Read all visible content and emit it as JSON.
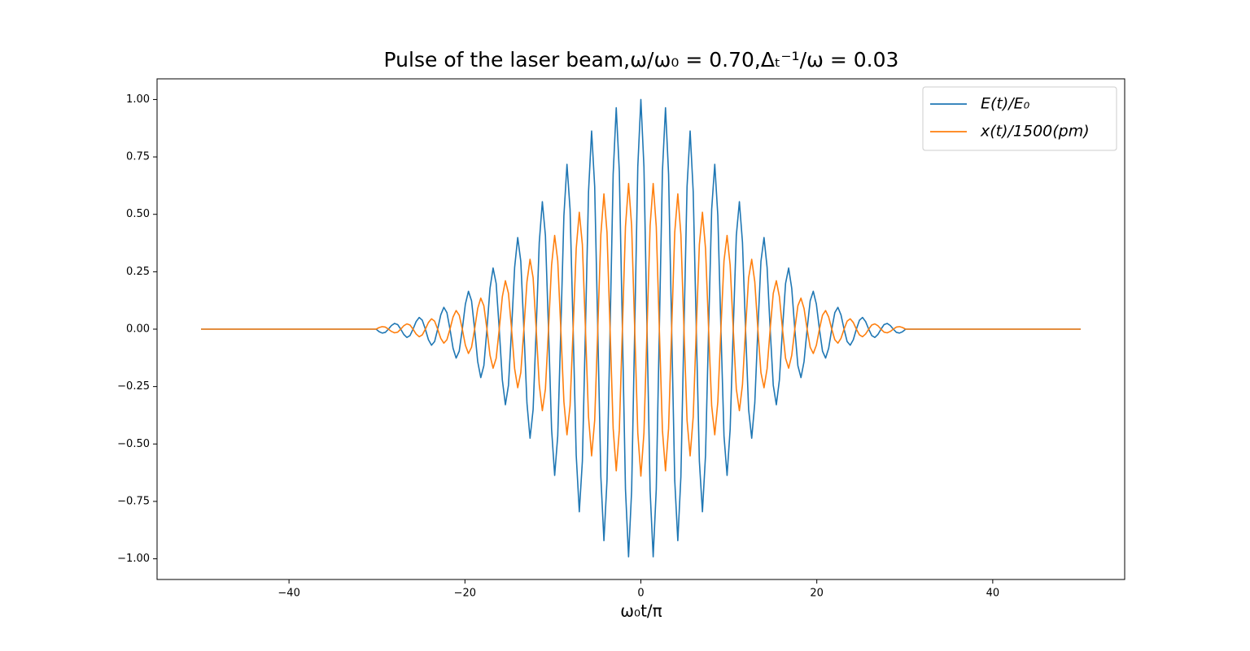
{
  "chart_data": {
    "type": "line",
    "title": "Pulse of the laser beam,ω/ω₀ = 0.70,Δₜ⁻¹/ω = 0.03",
    "x_label": "ω₀t/π",
    "x": [
      -50,
      -30.1,
      -29.75,
      -29.4,
      -29.05,
      -28.7,
      -28.35,
      -28,
      -27.65,
      -27.3,
      -26.95,
      -26.6,
      -26.25,
      -25.9,
      -25.55,
      -25.2,
      -24.85,
      -24.5,
      -24.15,
      -23.8,
      -23.45,
      -23.1,
      -22.75,
      -22.4,
      -22.05,
      -21.7,
      -21.35,
      -21,
      -20.65,
      -20.3,
      -19.95,
      -19.6,
      -19.25,
      -18.9,
      -18.55,
      -18.2,
      -17.85,
      -17.5,
      -17.15,
      -16.8,
      -16.45,
      -16.1,
      -15.75,
      -15.4,
      -15.05,
      -14.7,
      -14.35,
      -14,
      -13.65,
      -13.3,
      -12.95,
      -12.6,
      -12.25,
      -11.9,
      -11.55,
      -11.2,
      -10.85,
      -10.5,
      -10.15,
      -9.8,
      -9.45,
      -9.1,
      -8.75,
      -8.4,
      -8.05,
      -7.7,
      -7.35,
      -7,
      -6.65,
      -6.3,
      -5.95,
      -5.6,
      -5.25,
      -4.9,
      -4.55,
      -4.2,
      -3.85,
      -3.5,
      -3.15,
      -2.8,
      -2.45,
      -2.1,
      -1.75,
      -1.4,
      -1.05,
      -0.7,
      -0.35,
      0,
      0.35,
      0.7,
      1.05,
      1.4,
      1.75,
      2.1,
      2.45,
      2.8,
      3.15,
      3.5,
      3.85,
      4.2,
      4.55,
      4.9,
      5.25,
      5.6,
      5.95,
      6.3,
      6.65,
      7,
      7.35,
      7.7,
      8.05,
      8.4,
      8.75,
      9.1,
      9.45,
      9.8,
      10.15,
      10.5,
      10.85,
      11.2,
      11.55,
      11.9,
      12.25,
      12.6,
      12.95,
      13.3,
      13.65,
      14,
      14.35,
      14.7,
      15.05,
      15.4,
      15.75,
      16.1,
      16.45,
      16.8,
      17.15,
      17.5,
      17.85,
      18.2,
      18.55,
      18.9,
      19.25,
      19.6,
      19.95,
      20.3,
      20.65,
      21,
      21.35,
      21.7,
      22.05,
      22.4,
      22.75,
      23.1,
      23.45,
      23.8,
      24.15,
      24.5,
      24.85,
      25.2,
      25.55,
      25.9,
      26.25,
      26.6,
      26.95,
      27.3,
      27.65,
      28,
      28.35,
      28.7,
      29.05,
      29.4,
      29.75,
      30.1,
      50
    ],
    "series": [
      {
        "name": "E(t)/E₀",
        "color": "#1f77b4",
        "values": [
          0,
          0,
          -0.011,
          -0.017,
          -0.014,
          0,
          0.016,
          0.025,
          0.02,
          0,
          -0.023,
          -0.036,
          -0.028,
          0,
          0.033,
          0.051,
          0.039,
          0,
          -0.046,
          -0.07,
          -0.054,
          0,
          0.062,
          0.095,
          0.072,
          0,
          -0.083,
          -0.126,
          -0.096,
          0,
          0.109,
          0.165,
          0.124,
          0,
          -0.141,
          -0.211,
          -0.159,
          0,
          0.178,
          0.266,
          0.199,
          0,
          -0.221,
          -0.329,
          -0.244,
          0,
          0.269,
          0.399,
          0.295,
          0,
          -0.322,
          -0.475,
          -0.35,
          0,
          0.378,
          0.555,
          0.407,
          0,
          -0.436,
          -0.637,
          -0.465,
          0,
          0.494,
          0.718,
          0.522,
          0,
          -0.549,
          -0.795,
          -0.575,
          0,
          0.599,
          0.863,
          0.621,
          0,
          -0.642,
          -0.921,
          -0.659,
          0,
          0.675,
          0.964,
          0.687,
          0,
          -0.697,
          -0.991,
          -0.703,
          0,
          0.707,
          1,
          0.707,
          0,
          -0.703,
          -0.991,
          -0.697,
          0,
          0.687,
          0.964,
          0.675,
          0,
          -0.659,
          -0.921,
          -0.642,
          0,
          0.621,
          0.863,
          0.599,
          0,
          -0.575,
          -0.795,
          -0.549,
          0,
          0.522,
          0.718,
          0.494,
          0,
          -0.465,
          -0.637,
          -0.436,
          0,
          0.407,
          0.555,
          0.378,
          0,
          -0.35,
          -0.475,
          -0.322,
          0,
          0.295,
          0.399,
          0.269,
          0,
          -0.244,
          -0.329,
          -0.221,
          0,
          0.199,
          0.266,
          0.178,
          0,
          -0.159,
          -0.211,
          -0.141,
          0,
          0.124,
          0.165,
          0.109,
          0,
          -0.096,
          -0.126,
          -0.083,
          0,
          0.072,
          0.095,
          0.062,
          0,
          -0.054,
          -0.07,
          -0.046,
          0,
          0.039,
          0.051,
          0.033,
          0,
          -0.028,
          -0.036,
          -0.023,
          0,
          0.02,
          0.025,
          0.016,
          0,
          -0.014,
          -0.017,
          -0.011,
          0,
          0
        ]
      },
      {
        "name": "x(t)/1500(pm)",
        "color": "#ff7f0e",
        "values": [
          0,
          0,
          0.007,
          0.011,
          0.009,
          0,
          -0.01,
          -0.016,
          -0.013,
          0,
          0.015,
          0.023,
          0.018,
          0,
          -0.021,
          -0.033,
          -0.025,
          0,
          0.029,
          0.045,
          0.035,
          0,
          -0.04,
          -0.061,
          -0.046,
          0,
          0.053,
          0.081,
          0.061,
          0,
          -0.07,
          -0.106,
          -0.079,
          0,
          0.09,
          0.135,
          0.102,
          0,
          -0.114,
          -0.17,
          -0.127,
          0,
          0.141,
          0.211,
          0.156,
          0,
          -0.172,
          -0.255,
          -0.189,
          0,
          0.206,
          0.304,
          0.224,
          0,
          -0.242,
          -0.355,
          -0.26,
          0,
          0.279,
          0.408,
          0.298,
          0,
          -0.316,
          -0.46,
          -0.334,
          0,
          0.351,
          0.509,
          0.368,
          0,
          -0.383,
          -0.552,
          -0.397,
          0,
          0.411,
          0.589,
          0.422,
          0,
          -0.432,
          -0.617,
          -0.44,
          0,
          0.446,
          0.634,
          0.45,
          0,
          -0.452,
          -0.64,
          -0.452,
          0,
          0.45,
          0.634,
          0.446,
          0,
          -0.44,
          -0.617,
          -0.432,
          0,
          0.422,
          0.589,
          0.411,
          0,
          -0.397,
          -0.552,
          -0.383,
          0,
          0.368,
          0.509,
          0.351,
          0,
          -0.334,
          -0.46,
          -0.316,
          0,
          0.298,
          0.408,
          0.279,
          0,
          -0.26,
          -0.355,
          -0.242,
          0,
          0.224,
          0.304,
          0.206,
          0,
          -0.189,
          -0.255,
          -0.172,
          0,
          0.156,
          0.211,
          0.141,
          0,
          -0.127,
          -0.17,
          -0.114,
          0,
          0.102,
          0.135,
          0.09,
          0,
          -0.079,
          -0.106,
          -0.07,
          0,
          0.061,
          0.081,
          0.053,
          0,
          -0.046,
          -0.061,
          -0.04,
          0,
          0.035,
          0.045,
          0.029,
          0,
          -0.025,
          -0.033,
          -0.021,
          0,
          0.018,
          0.023,
          0.015,
          0,
          -0.013,
          -0.016,
          -0.01,
          0,
          0.009,
          0.011,
          0.007,
          0,
          0
        ]
      }
    ],
    "xlim": [
      -55,
      55
    ],
    "ylim": [
      -1.09,
      1.09
    ],
    "xticks": [
      {
        "value": -40,
        "label": "−40"
      },
      {
        "value": -20,
        "label": "−20"
      },
      {
        "value": 0,
        "label": "0"
      },
      {
        "value": 20,
        "label": "20"
      },
      {
        "value": 40,
        "label": "40"
      }
    ],
    "yticks": [
      {
        "value": -1,
        "label": "−1.00"
      },
      {
        "value": -0.75,
        "label": "−0.75"
      },
      {
        "value": -0.5,
        "label": "−0.50"
      },
      {
        "value": -0.25,
        "label": "−0.25"
      },
      {
        "value": 0,
        "label": "0.00"
      },
      {
        "value": 0.25,
        "label": "0.25"
      },
      {
        "value": 0.5,
        "label": "0.50"
      },
      {
        "value": 0.75,
        "label": "0.75"
      },
      {
        "value": 1,
        "label": "1.00"
      }
    ],
    "grid": false,
    "legend": "upper right"
  }
}
